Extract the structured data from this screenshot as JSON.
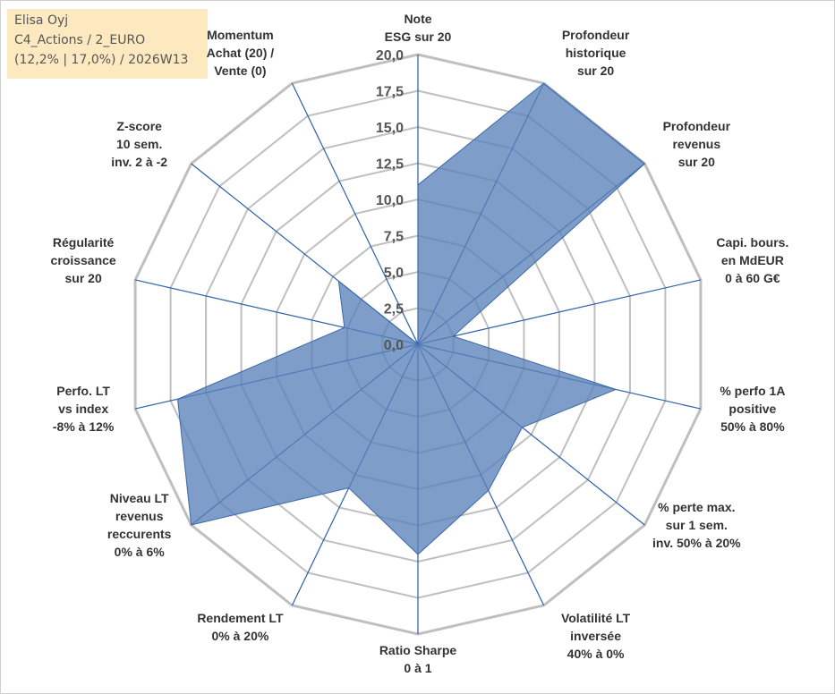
{
  "info": {
    "company": "Elisa Oyj",
    "portfolio": "C4_Actions / 2_EURO",
    "stats": "(12,2% | 17,0%) / 2026W13"
  },
  "chart_data": {
    "type": "radar",
    "title": "",
    "r_min": 0,
    "r_max": 20,
    "tick_values": [
      0,
      2.5,
      5,
      7.5,
      10,
      12.5,
      15,
      17.5,
      20
    ],
    "tick_labels": [
      "0,0",
      "2,5",
      "5,0",
      "7,5",
      "10,0",
      "12,5",
      "15,0",
      "17,5",
      "20,0"
    ],
    "axes": [
      {
        "label": [
          "Note",
          "ESG sur 20"
        ],
        "value": 11.0
      },
      {
        "label": [
          "Profondeur",
          "historique",
          "sur 20"
        ],
        "value": 20.0
      },
      {
        "label": [
          "Profondeur",
          "revenus",
          "sur 20"
        ],
        "value": 20.0
      },
      {
        "label": [
          "Capi. bours.",
          "en MdEUR",
          "0 à 60 G€"
        ],
        "value": 2.5
      },
      {
        "label": [
          "% perfo 1A",
          "positive",
          "50% à 80%"
        ],
        "value": 14.0
      },
      {
        "label": [
          "% perte max.",
          "sur 1 sem.",
          "inv. 50% à 20%"
        ],
        "value": 9.2
      },
      {
        "label": [
          "Volatilité LT",
          "inversée",
          "40% à 0%"
        ],
        "value": 11.2
      },
      {
        "label": [
          "Ratio Sharpe",
          "0 à 1"
        ],
        "value": 14.5
      },
      {
        "label": [
          "Rendement LT",
          "0% à 20%"
        ],
        "value": 11.0
      },
      {
        "label": [
          "Niveau LT",
          "revenus",
          "reccurents",
          "0% à 6%"
        ],
        "value": 20.0
      },
      {
        "label": [
          "Perfo. LT",
          "vs index",
          "-8% à 12%"
        ],
        "value": 17.0
      },
      {
        "label": [
          "Régularité",
          "croissance",
          "sur 20"
        ],
        "value": 5.2
      },
      {
        "label": [
          "Z-score",
          "10 sem.",
          "inv. 2 à -2"
        ],
        "value": 7.0
      },
      {
        "label": [
          "Momentum",
          "Achat (20) /",
          "Vente (0)"
        ],
        "value": 0.0
      }
    ],
    "series": [
      {
        "name": "Elisa Oyj",
        "color": "#5a82b8"
      }
    ],
    "colors": {
      "grid": "#bfbfbf",
      "spoke": "#2e5fa8",
      "fill": "#5a82b8",
      "fill_stroke": "#3a68a8"
    }
  }
}
